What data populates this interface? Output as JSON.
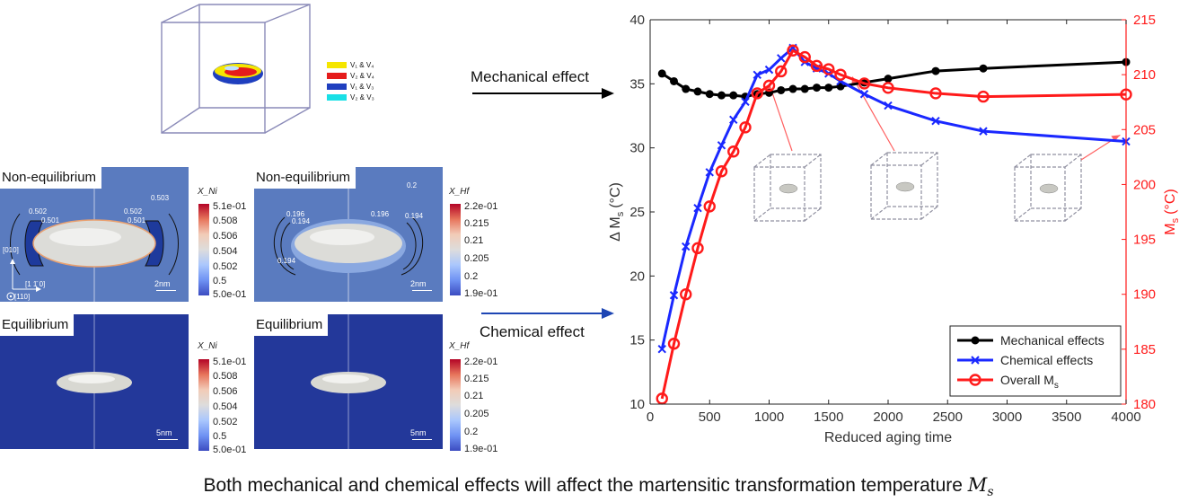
{
  "top_legend": [
    {
      "label": "V₁ & V₄",
      "color": "#f5e600"
    },
    {
      "label": "V₂ & V₄",
      "color": "#e51c1c"
    },
    {
      "label": "V₁ & V₃",
      "color": "#1f3fbf"
    },
    {
      "label": "V₂ & V₃",
      "color": "#19e0e6"
    }
  ],
  "panels": {
    "ni_noneq": {
      "title": "Non-equilibrium",
      "contour_labels": [
        "0.502",
        "0.501",
        "0.502",
        "0.501",
        "0.503"
      ],
      "scale_label": "2nm",
      "axes": {
        "y": "[010]",
        "x": "[1 1̄ 0]",
        "z": "[110]"
      }
    },
    "hf_noneq": {
      "title": "Non-equilibrium",
      "contour_labels": [
        "0.196",
        "0.194",
        "0.196",
        "0.194",
        "0.194",
        "0.2"
      ],
      "scale_label": "2nm"
    },
    "ni_eq": {
      "title": "Equilibrium",
      "scale_label": "5nm"
    },
    "hf_eq": {
      "title": "Equilibrium",
      "scale_label": "5nm"
    }
  },
  "colorbars": {
    "ni": {
      "title": "X_Ni",
      "ticks": [
        "5.1e-01",
        "0.508",
        "0.506",
        "0.504",
        "0.502",
        "0.5",
        "5.0e-01"
      ]
    },
    "hf": {
      "title": "X_Hf",
      "ticks": [
        "2.2e-01",
        "0.215",
        "0.21",
        "0.205",
        "0.2",
        "1.9e-01"
      ]
    }
  },
  "arrows": {
    "mechanical_label": "Mechanical effect",
    "chemical_label": "Chemical effect"
  },
  "caption": "Both mechanical and chemical effects will affect the martensitic transformation temperature",
  "caption_symbol": "M",
  "caption_symbol_sub": "s",
  "chart_data": {
    "type": "line",
    "xlabel": "Reduced aging time",
    "ylabel_left": "Δ M",
    "ylabel_left_sub": "s",
    "ylabel_left_unit": "(°C)",
    "ylabel_right": "M",
    "ylabel_right_sub": "s",
    "ylabel_right_unit": "(°C)",
    "xlim": [
      0,
      4000
    ],
    "ylim_left": [
      10,
      40
    ],
    "ylim_right": [
      180,
      215
    ],
    "xticks": [
      0,
      500,
      1000,
      1500,
      2000,
      2500,
      3000,
      3500,
      4000
    ],
    "yticks_left": [
      10,
      15,
      20,
      25,
      30,
      35,
      40
    ],
    "yticks_right": [
      180,
      185,
      190,
      195,
      200,
      205,
      210,
      215
    ],
    "legend_position": "bottom-right",
    "series": [
      {
        "name": "Mechanical effects",
        "axis": "left",
        "color": "#000000",
        "marker": "dot",
        "x": [
          100,
          200,
          300,
          400,
          500,
          600,
          700,
          800,
          900,
          1000,
          1100,
          1200,
          1300,
          1400,
          1500,
          1600,
          1800,
          2000,
          2400,
          2800,
          4000
        ],
        "y": [
          35.8,
          35.2,
          34.6,
          34.4,
          34.2,
          34.1,
          34.1,
          34.0,
          34.2,
          34.3,
          34.5,
          34.6,
          34.6,
          34.7,
          34.7,
          34.8,
          35.1,
          35.4,
          36.0,
          36.2,
          36.7
        ]
      },
      {
        "name": "Chemical effects",
        "axis": "left",
        "color": "#1a28ff",
        "marker": "x",
        "x": [
          100,
          200,
          300,
          400,
          500,
          600,
          700,
          800,
          900,
          1000,
          1100,
          1200,
          1300,
          1400,
          1500,
          1600,
          1800,
          2000,
          2400,
          2800,
          4000
        ],
        "y": [
          14.3,
          18.5,
          22.3,
          25.3,
          28.1,
          30.2,
          32.2,
          33.6,
          35.7,
          36.1,
          37.0,
          37.8,
          36.7,
          36.2,
          35.8,
          35.2,
          34.2,
          33.3,
          32.1,
          31.3,
          30.5
        ]
      },
      {
        "name": "Overall M",
        "name_sub": "s",
        "axis": "right",
        "color": "#ff1a1a",
        "marker": "o",
        "x": [
          100,
          200,
          300,
          400,
          500,
          600,
          700,
          800,
          900,
          1000,
          1100,
          1200,
          1300,
          1400,
          1500,
          1600,
          1800,
          2000,
          2400,
          2800,
          4000
        ],
        "y": [
          180.5,
          185.5,
          190.0,
          194.2,
          198.0,
          201.2,
          203.0,
          205.2,
          208.3,
          209.0,
          210.3,
          212.2,
          211.6,
          210.8,
          210.5,
          210.0,
          209.2,
          208.8,
          208.3,
          208.0,
          208.2
        ]
      }
    ]
  }
}
